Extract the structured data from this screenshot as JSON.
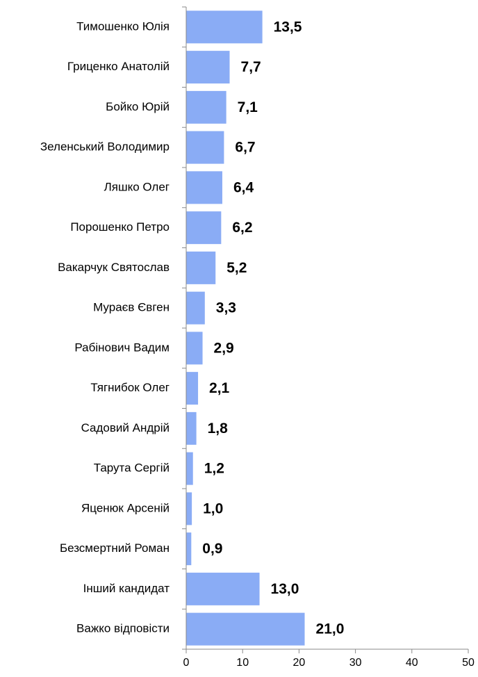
{
  "chart_data": {
    "type": "bar",
    "orientation": "horizontal",
    "categories": [
      "Тимошенко Юлія",
      "Гриценко Анатолій",
      "Бойко Юрій",
      "Зеленський Володимир",
      "Ляшко Олег",
      "Порошенко Петро",
      "Вакарчук Святослав",
      "Мураєв Євген",
      "Рабінович Вадим",
      "Тягнибок Олег",
      "Садовий Андрій",
      "Тарута Сергій",
      "Яценюк Арсеній",
      "Безсмертний Роман",
      "Інший кандидат",
      "Важко відповісти"
    ],
    "values": [
      13.5,
      7.7,
      7.1,
      6.7,
      6.4,
      6.2,
      5.2,
      3.3,
      2.9,
      2.1,
      1.8,
      1.2,
      1.0,
      0.9,
      13.0,
      21.0
    ],
    "value_labels": [
      "13,5",
      "7,7",
      "7,1",
      "6,7",
      "6,4",
      "6,2",
      "5,2",
      "3,3",
      "2,9",
      "2,1",
      "1,8",
      "1,2",
      "1,0",
      "0,9",
      "13,0",
      "21,0"
    ],
    "color": "#8aacf5",
    "xlim": [
      0,
      50
    ],
    "xticks": [
      0,
      10,
      20,
      30,
      40,
      50
    ]
  }
}
